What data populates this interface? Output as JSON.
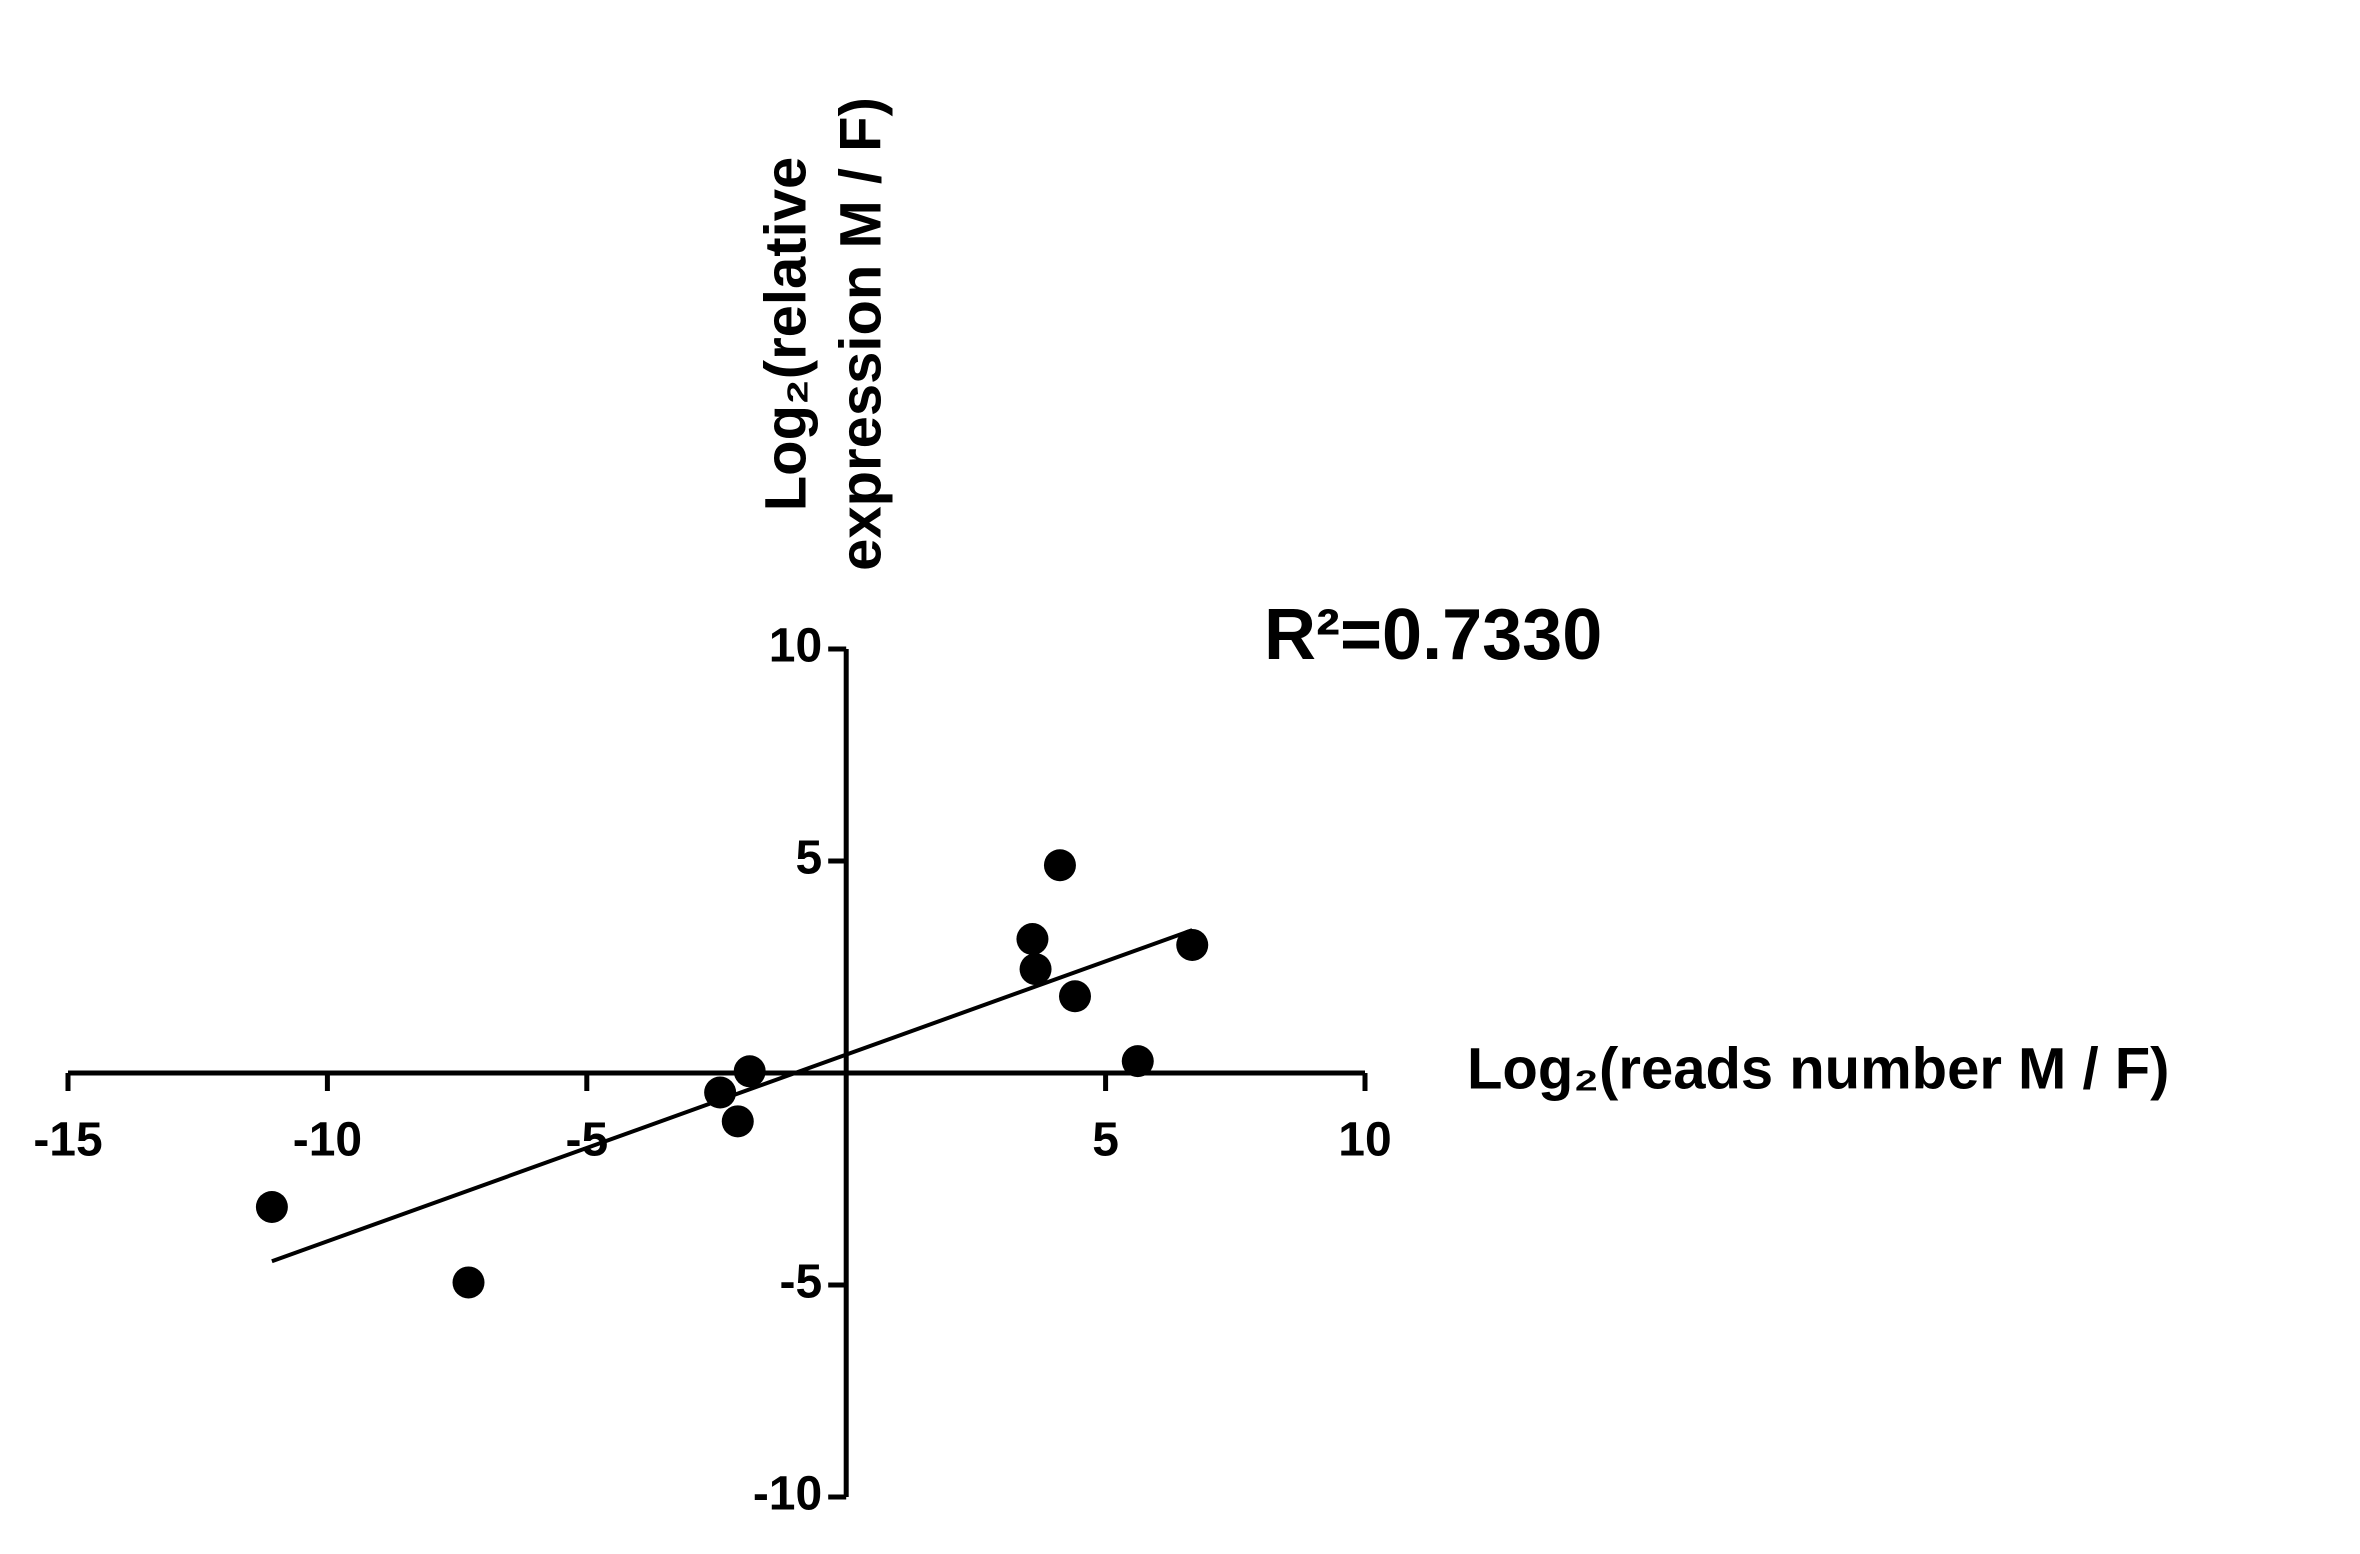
{
  "chart_data": {
    "type": "scatter",
    "xlabel": "Log₂(reads number M / F)",
    "ylabel": [
      "Log₂(relative",
      "expression M / F)"
    ],
    "annotation": "R²=0.7330",
    "x": [
      -11.07,
      -7.28,
      -2.43,
      -2.09,
      -1.86,
      3.59,
      3.65,
      4.12,
      4.41,
      5.62,
      6.67
    ],
    "values": [
      -3.16,
      -4.94,
      -0.46,
      -1.14,
      0.04,
      3.16,
      2.45,
      4.9,
      1.81,
      0.28,
      3.02
    ],
    "trend_line": {
      "x": [
        -11.07,
        6.67
      ],
      "y": [
        -4.44,
        3.37
      ]
    },
    "color": "#000000",
    "xlim": [
      -15,
      10
    ],
    "xticks": [
      -15,
      -10,
      -5,
      5,
      10
    ],
    "ylim": [
      -10,
      10
    ],
    "yticks": [
      -10,
      -5,
      5,
      10
    ],
    "grid": false
  }
}
